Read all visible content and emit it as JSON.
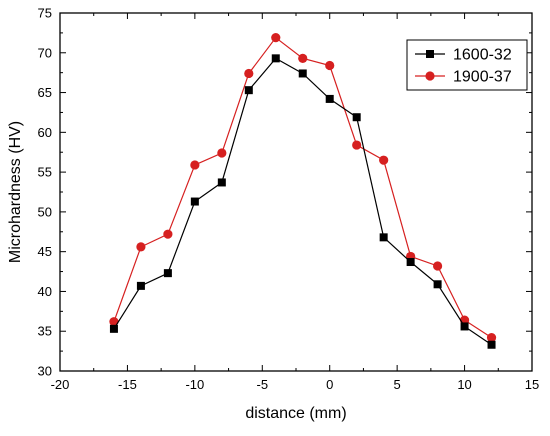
{
  "chart_data": {
    "type": "line",
    "xlabel": "distance (mm)",
    "ylabel": "Microhardness (HV)",
    "xlim": [
      -20,
      15
    ],
    "ylim": [
      30,
      75
    ],
    "x_ticks": [
      -20,
      -15,
      -10,
      -5,
      0,
      5,
      10,
      15
    ],
    "y_ticks": [
      30,
      35,
      40,
      45,
      50,
      55,
      60,
      65,
      70,
      75
    ],
    "grid": false,
    "legend_position": "top-right",
    "x": [
      -16,
      -14,
      -12,
      -10,
      -8,
      -6,
      -4,
      -2,
      0,
      2,
      4,
      6,
      8,
      10,
      12
    ],
    "series": [
      {
        "name": "1600-32",
        "color": "#000000",
        "marker": "square",
        "values": [
          35.3,
          40.7,
          42.3,
          51.3,
          53.7,
          65.3,
          69.3,
          67.4,
          64.2,
          61.9,
          46.8,
          43.7,
          40.9,
          35.6,
          33.3
        ]
      },
      {
        "name": "1900-37",
        "color": "#d62020",
        "marker": "circle",
        "values": [
          36.2,
          45.6,
          47.2,
          55.9,
          57.4,
          67.4,
          71.9,
          69.3,
          68.4,
          58.4,
          56.5,
          44.4,
          43.2,
          36.4,
          34.2
        ]
      }
    ]
  }
}
